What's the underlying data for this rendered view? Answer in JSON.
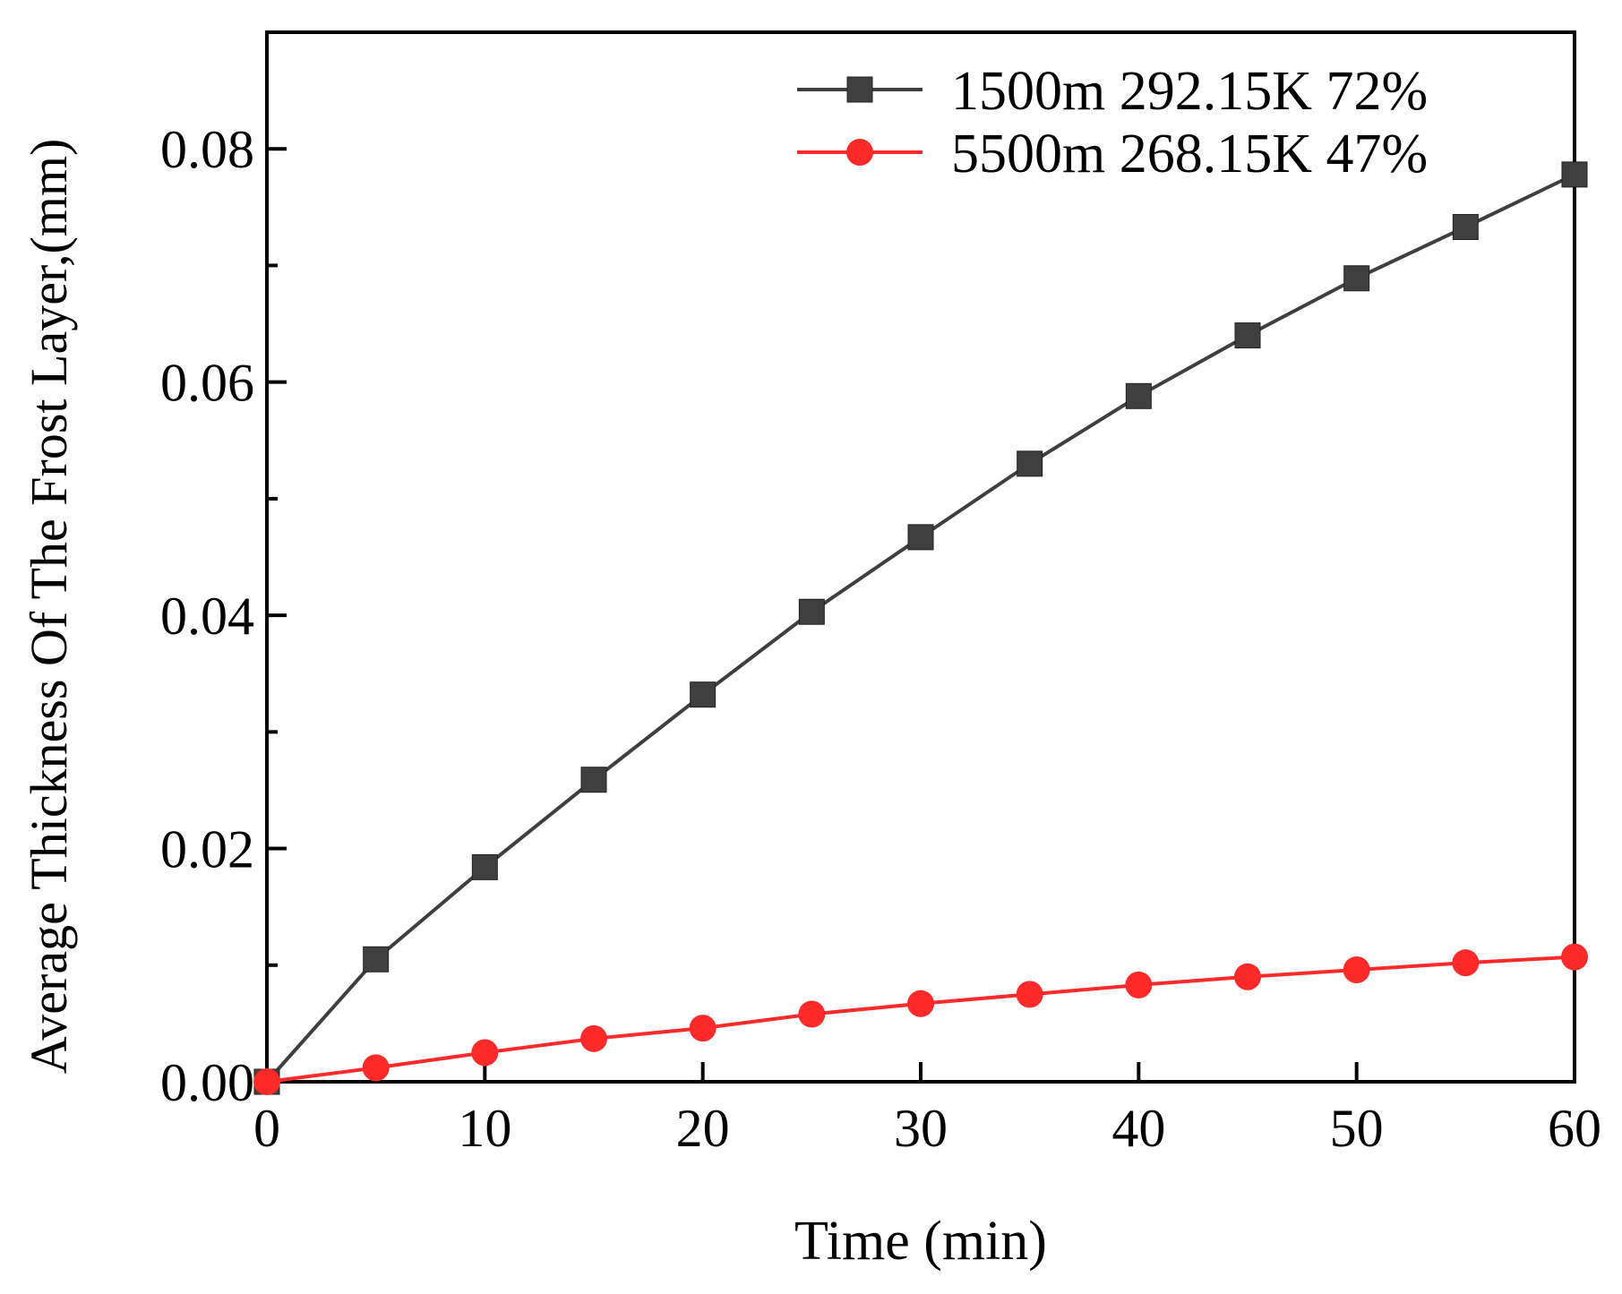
{
  "chart_data": {
    "type": "line",
    "title": "",
    "xlabel": "Time (min)",
    "ylabel": "Average  Thickness Of The Frost Layer,(mm)",
    "xlim": [
      0,
      60
    ],
    "ylim": [
      0,
      0.09
    ],
    "x_ticks": [
      0,
      10,
      20,
      30,
      40,
      50,
      60
    ],
    "x_tick_labels": [
      "0",
      "10",
      "20",
      "30",
      "40",
      "50",
      "60"
    ],
    "y_ticks": [
      0,
      0.02,
      0.04,
      0.06,
      0.08
    ],
    "y_tick_labels": [
      "0.00",
      "0.02",
      "0.04",
      "0.06",
      "0.08"
    ],
    "y_minor_ticks": [
      0.01,
      0.03,
      0.05,
      0.07
    ],
    "grid": false,
    "legend_position": "top-right",
    "x": [
      0,
      5,
      10,
      15,
      20,
      25,
      30,
      35,
      40,
      45,
      50,
      55,
      60
    ],
    "series": [
      {
        "name": "1500m 292.15K 72%",
        "color": "#3f3f3f",
        "marker": "square",
        "values": [
          0.0,
          0.0105,
          0.0184,
          0.0259,
          0.0332,
          0.0403,
          0.0467,
          0.053,
          0.0588,
          0.064,
          0.0689,
          0.0733,
          0.0778
        ]
      },
      {
        "name": "5500m 268.15K 47%",
        "color": "#ff2a2a",
        "marker": "circle",
        "values": [
          0.0,
          0.0012,
          0.0025,
          0.0037,
          0.0046,
          0.0058,
          0.0067,
          0.0075,
          0.0083,
          0.009,
          0.0096,
          0.0102,
          0.0107
        ]
      }
    ]
  }
}
